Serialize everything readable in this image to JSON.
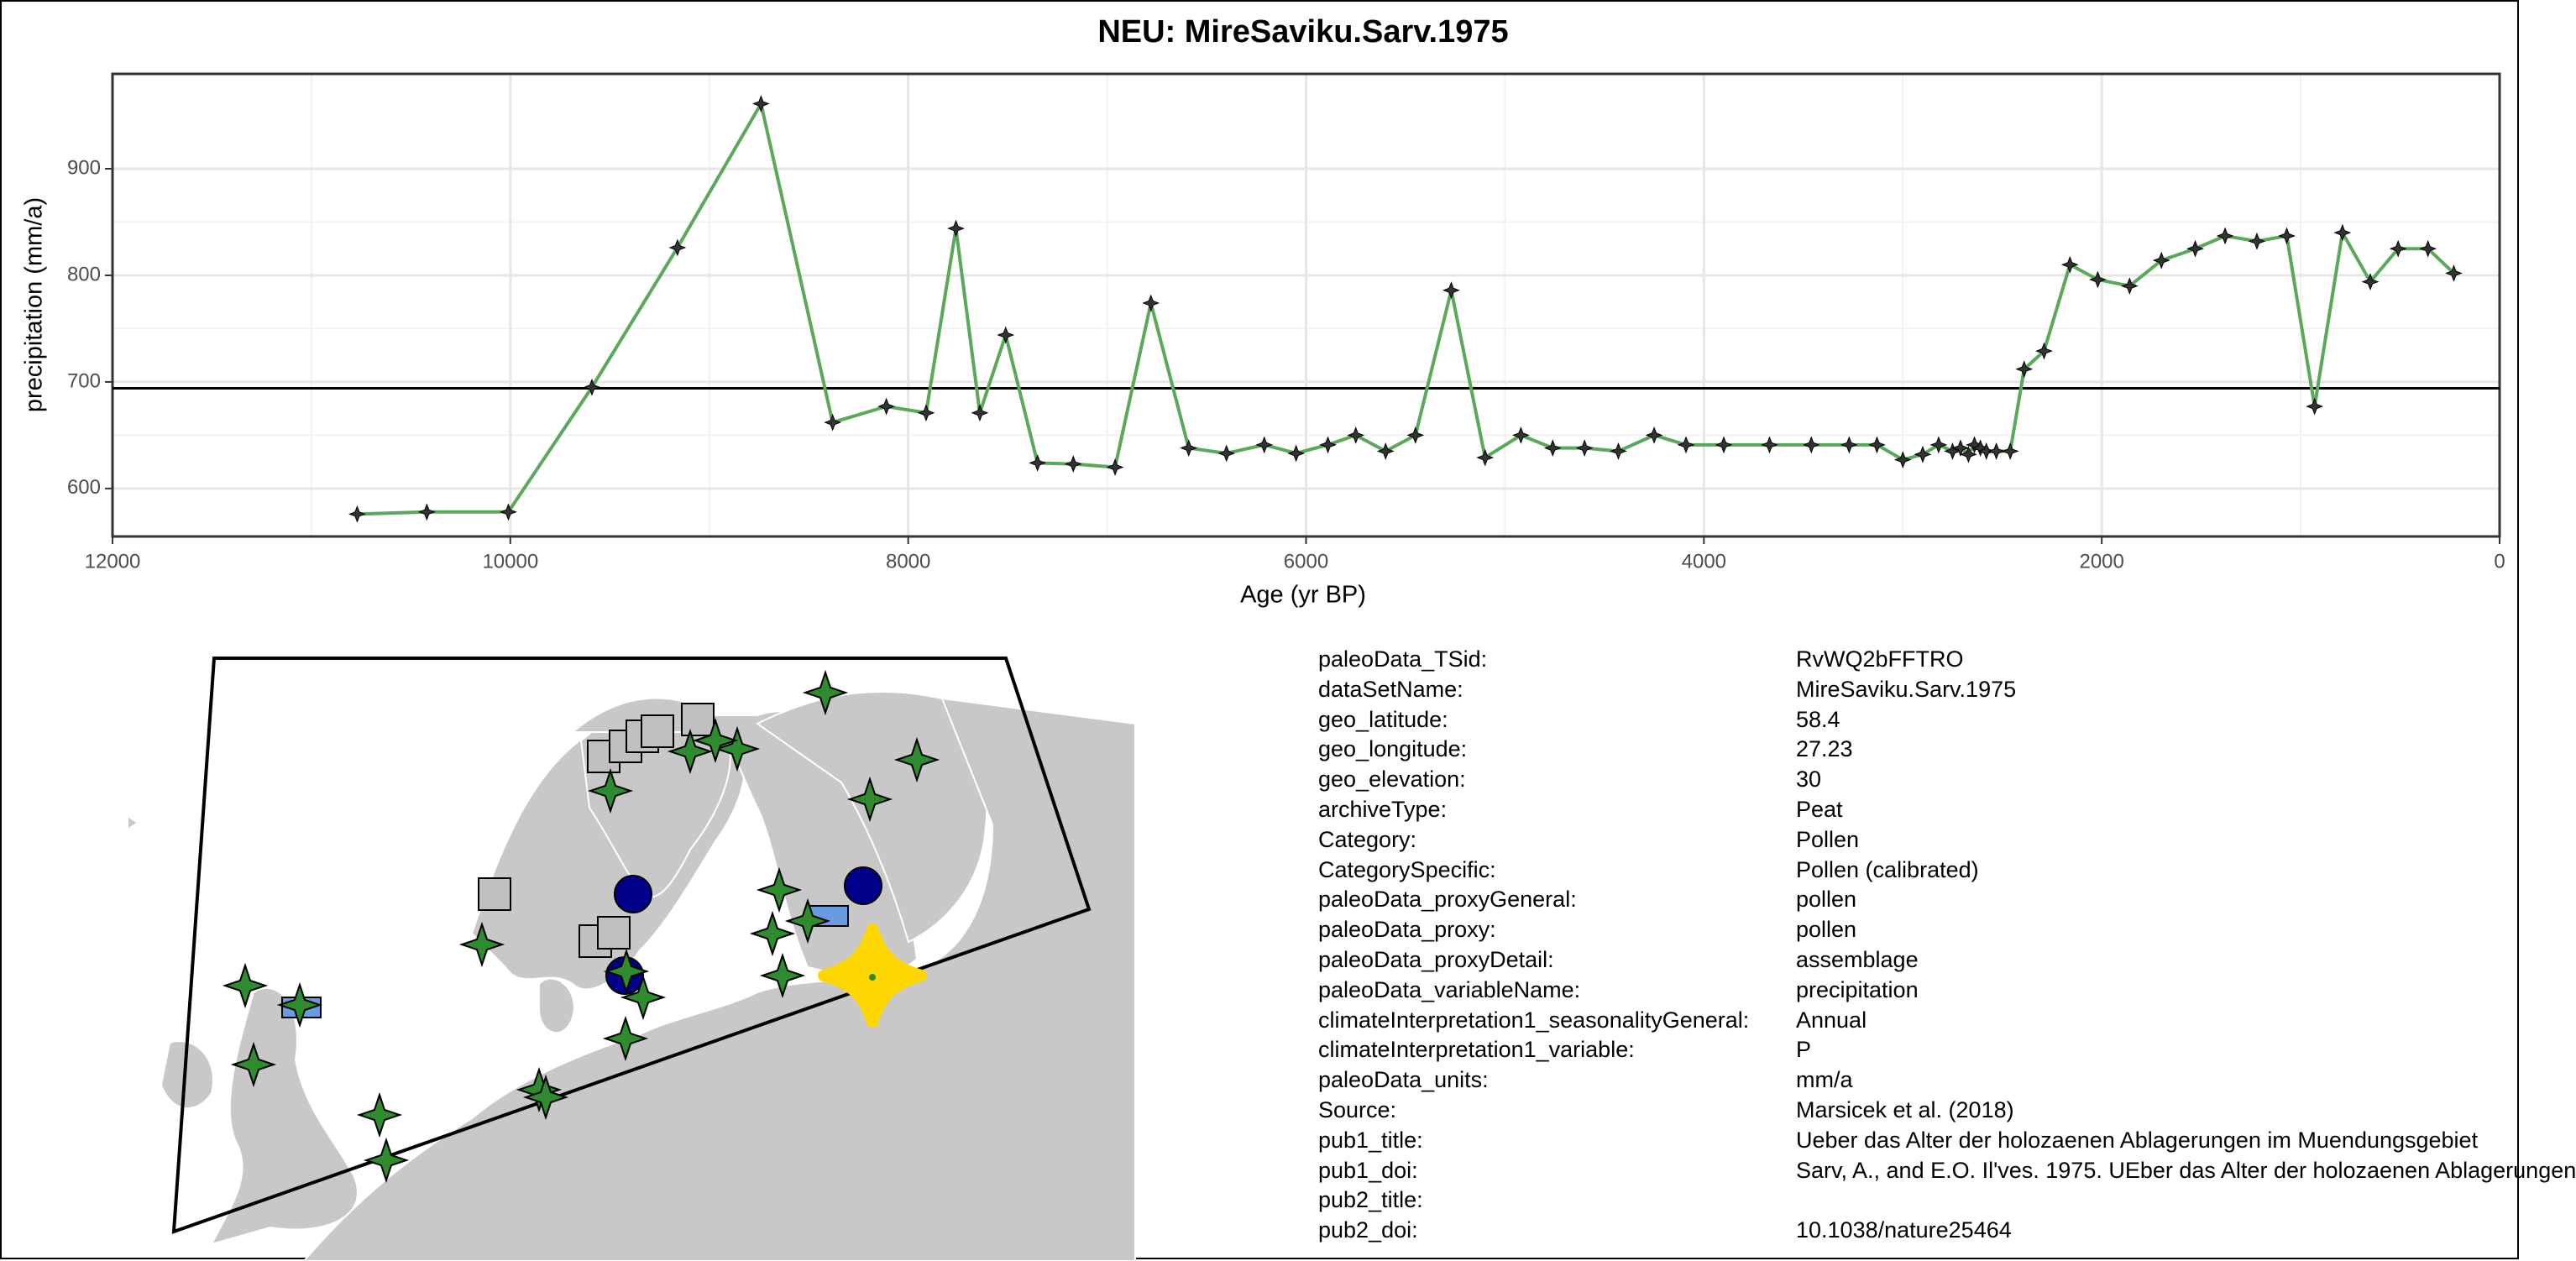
{
  "chart_data": {
    "type": "line",
    "title": "NEU: MireSaviku.Sarv.1975",
    "xlabel": "Age (yr BP)",
    "ylabel": "precipitation (mm/a)",
    "x": [
      10770,
      10420,
      10010,
      9590,
      9160,
      8740,
      8380,
      8110,
      7910,
      7760,
      7640,
      7510,
      7350,
      7170,
      6960,
      6780,
      6590,
      6400,
      6210,
      6050,
      5890,
      5750,
      5600,
      5450,
      5270,
      5100,
      4920,
      4760,
      4600,
      4430,
      4250,
      4090,
      3900,
      3670,
      3460,
      3270,
      3130,
      3000,
      2900,
      2820,
      2750,
      2710,
      2670,
      2640,
      2610,
      2580,
      2530,
      2460,
      2390,
      2290,
      2160,
      2020,
      1860,
      1700,
      1530,
      1380,
      1220,
      1070,
      930,
      790,
      650,
      510,
      360,
      230
    ],
    "values": [
      576,
      578,
      578,
      695,
      826,
      961,
      662,
      677,
      671,
      844,
      671,
      744,
      624,
      623,
      620,
      774,
      638,
      633,
      641,
      633,
      641,
      650,
      635,
      650,
      786,
      629,
      650,
      638,
      638,
      635,
      650,
      641,
      641,
      641,
      641,
      641,
      641,
      627,
      632,
      641,
      635,
      638,
      632,
      641,
      638,
      635,
      635,
      635,
      712,
      729,
      810,
      796,
      790,
      814,
      825,
      837,
      832,
      837,
      677,
      840,
      794,
      825,
      825,
      802
    ],
    "color": "#5aa85a",
    "marker_color": "#333333",
    "hline": 694,
    "xlim": [
      12000,
      0
    ],
    "xticks": [
      12000,
      10000,
      8000,
      6000,
      4000,
      2000,
      0
    ],
    "ylim": [
      555,
      989
    ],
    "yticks": [
      600,
      700,
      800,
      900
    ],
    "grid": true
  },
  "metadata": {
    "rows": [
      [
        "paleoData_TSid:",
        "RvWQ2bFFTRO"
      ],
      [
        "dataSetName:",
        "MireSaviku.Sarv.1975"
      ],
      [
        "geo_latitude:",
        "58.4"
      ],
      [
        "geo_longitude:",
        "27.23"
      ],
      [
        "geo_elevation:",
        "30"
      ],
      [
        "archiveType:",
        "Peat"
      ],
      [
        "Category:",
        "Pollen"
      ],
      [
        "CategorySpecific:",
        "Pollen (calibrated)"
      ],
      [
        "paleoData_proxyGeneral:",
        "pollen"
      ],
      [
        "paleoData_proxy:",
        "pollen"
      ],
      [
        "paleoData_proxyDetail:",
        "assemblage"
      ],
      [
        "paleoData_variableName:",
        "precipitation"
      ],
      [
        "climateInterpretation1_seasonalityGeneral:",
        "Annual"
      ],
      [
        "climateInterpretation1_variable:",
        "P"
      ],
      [
        "paleoData_units:",
        "mm/a"
      ],
      [
        "Source:",
        "Marsicek et al. (2018)"
      ],
      [
        "pub1_title:",
        "Ueber das Alter der holozaenen Ablagerungen im Muendungsgebiet"
      ],
      [
        "pub1_doi:",
        "Sarv, A., and E.O. Il'ves. 1975. UEber das Alter der holozaenen Ablagerungen"
      ],
      [
        "pub2_title:",
        ""
      ],
      [
        "pub2_doi:",
        "10.1038/nature25464"
      ]
    ]
  }
}
